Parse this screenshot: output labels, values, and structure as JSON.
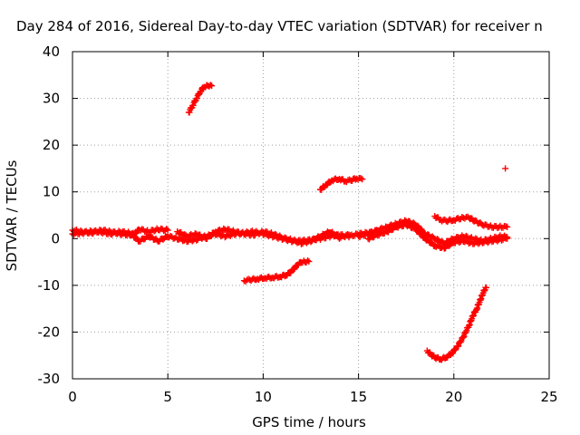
{
  "chart_data": {
    "type": "scatter",
    "title": "Day 284 of 2016, Sidereal Day-to-day VTEC variation (SDTVAR) for receiver n",
    "xlabel": "GPS time / hours",
    "ylabel": "SDTVAR / TECUs",
    "xlim": [
      0,
      25
    ],
    "ylim": [
      -30,
      40
    ],
    "x_ticks": [
      0,
      5,
      10,
      15,
      20,
      25
    ],
    "y_ticks": [
      -30,
      -20,
      -10,
      0,
      10,
      20,
      30,
      40
    ],
    "grid": true,
    "marker": "+",
    "color": "#ff0000",
    "segments": [
      {
        "points": [
          [
            0.0,
            1.8
          ],
          [
            0.5,
            1.5
          ],
          [
            1.0,
            1.2
          ],
          [
            1.5,
            1.8
          ],
          [
            2.0,
            1.5
          ],
          [
            2.5,
            1.0
          ],
          [
            3.0,
            0.8
          ],
          [
            3.3,
            1.2
          ],
          [
            3.5,
            2.0
          ],
          [
            4.0,
            1.5
          ],
          [
            4.5,
            2.0
          ],
          [
            5.0,
            1.8
          ]
        ]
      },
      {
        "points": [
          [
            0.0,
            1.0
          ],
          [
            0.5,
            1.2
          ],
          [
            1.0,
            1.6
          ],
          [
            1.5,
            1.4
          ],
          [
            2.0,
            1.0
          ],
          [
            2.5,
            1.5
          ],
          [
            3.0,
            1.2
          ],
          [
            3.5,
            -0.5
          ],
          [
            4.0,
            0.5
          ],
          [
            4.5,
            -0.5
          ],
          [
            5.0,
            0.5
          ],
          [
            5.5,
            0.0
          ],
          [
            6.0,
            -0.5
          ],
          [
            6.5,
            -0.2
          ],
          [
            7.0,
            0.5
          ],
          [
            7.5,
            1.0
          ],
          [
            8.0,
            0.5
          ],
          [
            8.5,
            1.0
          ],
          [
            9.0,
            1.2
          ],
          [
            9.5,
            1.5
          ],
          [
            10.0,
            1.0
          ],
          [
            10.5,
            0.5
          ],
          [
            11.0,
            0.0
          ],
          [
            11.5,
            -0.5
          ],
          [
            12.0,
            -0.5
          ],
          [
            12.5,
            -0.3
          ],
          [
            13.0,
            0.0
          ],
          [
            13.5,
            0.5
          ],
          [
            14.0,
            0.8
          ],
          [
            14.5,
            0.5
          ],
          [
            15.0,
            1.0
          ],
          [
            15.5,
            1.2
          ],
          [
            16.0,
            1.5
          ]
        ]
      },
      {
        "points": [
          [
            5.5,
            1.5
          ],
          [
            6.0,
            0.5
          ],
          [
            6.5,
            1.0
          ],
          [
            7.0,
            0.0
          ],
          [
            7.5,
            1.5
          ],
          [
            8.0,
            2.0
          ],
          [
            8.5,
            1.5
          ],
          [
            9.0,
            1.0
          ],
          [
            9.5,
            0.8
          ],
          [
            10.0,
            1.5
          ],
          [
            10.5,
            1.0
          ],
          [
            11.0,
            0.2
          ],
          [
            11.5,
            -0.3
          ],
          [
            12.0,
            -1.0
          ],
          [
            12.5,
            -0.5
          ],
          [
            13.0,
            0.5
          ],
          [
            13.5,
            1.5
          ],
          [
            14.0,
            0.2
          ],
          [
            14.5,
            0.8
          ]
        ]
      },
      {
        "points": [
          [
            15.0,
            0.5
          ],
          [
            15.5,
            1.0
          ],
          [
            16.0,
            1.8
          ],
          [
            16.5,
            2.5
          ],
          [
            17.0,
            3.2
          ],
          [
            17.5,
            3.8
          ],
          [
            18.0,
            3.0
          ],
          [
            18.5,
            1.0
          ],
          [
            19.0,
            0.0
          ],
          [
            19.5,
            -1.0
          ],
          [
            20.0,
            0.0
          ],
          [
            20.5,
            0.5
          ],
          [
            21.0,
            0.0
          ],
          [
            21.5,
            -0.5
          ],
          [
            22.0,
            0.0
          ],
          [
            22.5,
            0.5
          ],
          [
            22.8,
            0.3
          ]
        ]
      },
      {
        "points": [
          [
            15.5,
            0.0
          ],
          [
            16.0,
            0.8
          ],
          [
            16.5,
            1.5
          ],
          [
            17.0,
            2.5
          ],
          [
            17.5,
            3.0
          ],
          [
            18.0,
            2.0
          ],
          [
            18.5,
            0.0
          ],
          [
            19.0,
            -1.5
          ],
          [
            19.5,
            -2.0
          ],
          [
            20.0,
            -0.8
          ],
          [
            20.5,
            -0.5
          ],
          [
            21.0,
            -1.0
          ],
          [
            21.5,
            -0.8
          ],
          [
            22.0,
            -0.5
          ],
          [
            22.5,
            -0.2
          ],
          [
            22.8,
            0.0
          ]
        ]
      },
      {
        "points": [
          [
            19.0,
            4.8
          ],
          [
            19.3,
            4.0
          ],
          [
            19.6,
            3.8
          ],
          [
            20.0,
            4.0
          ],
          [
            20.5,
            4.5
          ],
          [
            20.8,
            4.5
          ],
          [
            21.0,
            4.0
          ],
          [
            21.5,
            3.0
          ],
          [
            22.0,
            2.5
          ],
          [
            22.5,
            2.5
          ],
          [
            22.8,
            2.5
          ]
        ]
      },
      {
        "points": [
          [
            6.1,
            27.0
          ],
          [
            6.3,
            28.5
          ],
          [
            6.5,
            30.0
          ],
          [
            6.7,
            31.5
          ],
          [
            6.9,
            32.5
          ],
          [
            7.1,
            32.8
          ],
          [
            7.3,
            32.7
          ]
        ]
      },
      {
        "points": [
          [
            13.0,
            10.5
          ],
          [
            13.3,
            11.5
          ],
          [
            13.6,
            12.5
          ],
          [
            14.0,
            12.8
          ],
          [
            14.3,
            12.3
          ],
          [
            14.6,
            12.5
          ],
          [
            14.9,
            12.9
          ],
          [
            15.2,
            12.7
          ]
        ]
      },
      {
        "points": [
          [
            9.0,
            -9.0
          ],
          [
            9.3,
            -8.8
          ],
          [
            9.7,
            -8.6
          ],
          [
            10.1,
            -8.4
          ],
          [
            10.5,
            -8.3
          ],
          [
            10.9,
            -8.1
          ],
          [
            11.2,
            -7.8
          ],
          [
            11.4,
            -7.3
          ],
          [
            11.6,
            -6.5
          ],
          [
            11.8,
            -5.6
          ],
          [
            12.0,
            -5.0
          ],
          [
            12.2,
            -4.9
          ],
          [
            12.4,
            -4.9
          ]
        ]
      },
      {
        "points": [
          [
            18.6,
            -24.0
          ],
          [
            18.8,
            -24.8
          ],
          [
            19.0,
            -25.4
          ],
          [
            19.3,
            -25.8
          ],
          [
            19.6,
            -25.4
          ],
          [
            19.9,
            -24.5
          ],
          [
            20.2,
            -23.0
          ],
          [
            20.5,
            -21.0
          ],
          [
            20.8,
            -18.5
          ],
          [
            21.0,
            -16.5
          ],
          [
            21.2,
            -15.0
          ],
          [
            21.4,
            -13.0
          ],
          [
            21.6,
            -11.0
          ],
          [
            21.7,
            -10.5
          ]
        ]
      },
      {
        "points": [
          [
            22.7,
            15.0
          ]
        ]
      }
    ]
  }
}
